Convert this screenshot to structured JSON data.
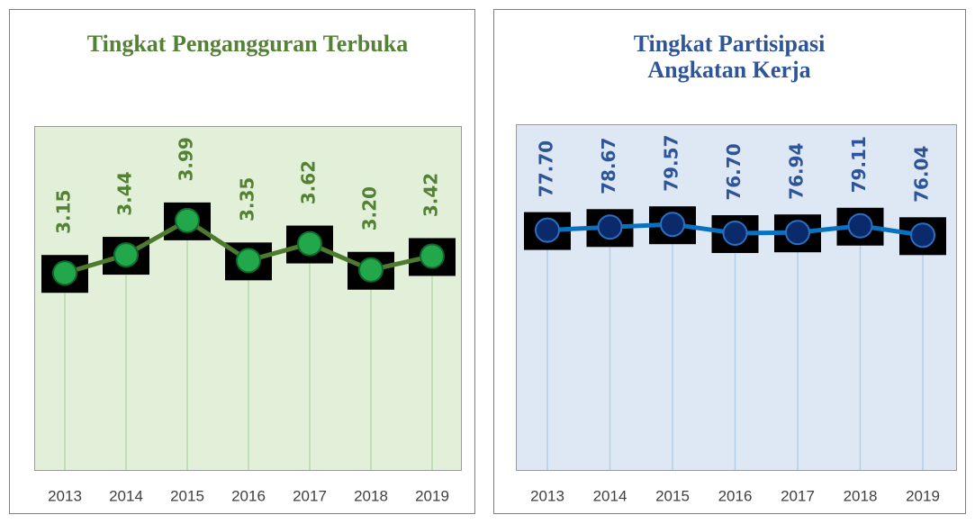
{
  "chart_data": [
    {
      "type": "line",
      "title": "Tingkat Pengangguran Terbuka",
      "categories": [
        "2013",
        "2014",
        "2015",
        "2016",
        "2017",
        "2018",
        "2019"
      ],
      "values": [
        3.15,
        3.44,
        3.99,
        3.35,
        3.62,
        3.2,
        3.42
      ],
      "value_labels": [
        "3.15",
        "3.44",
        "3.99",
        "3.35",
        "3.62",
        "3.20",
        "3.42"
      ],
      "color": "#4e7a2f",
      "ylim": [
        0,
        5.5
      ]
    },
    {
      "type": "line",
      "title": "Tingkat Partisipasi Angkatan Kerja",
      "categories": [
        "2013",
        "2014",
        "2015",
        "2016",
        "2017",
        "2018",
        "2019"
      ],
      "values": [
        77.7,
        78.67,
        79.57,
        76.7,
        76.94,
        79.11,
        76.04
      ],
      "value_labels": [
        "77.70",
        "78.67",
        "79.57",
        "76.70",
        "76.94",
        "79.11",
        "76.04"
      ],
      "color": "#0a70c0",
      "ylim": [
        0,
        112
      ]
    }
  ]
}
